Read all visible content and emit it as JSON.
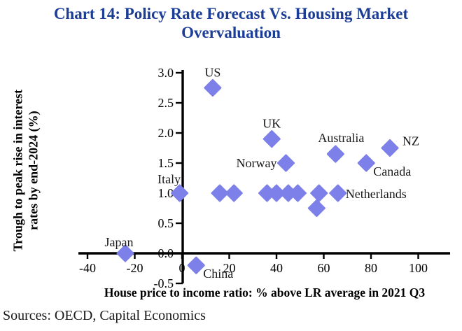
{
  "title": {
    "line1": "Chart 14: Policy Rate Forecast Vs. Housing Market",
    "line2": "Overvaluation"
  },
  "sources": "Sources: OECD, Capital Economics",
  "colors": {
    "title_blue": "#1c3d96",
    "marker": "#7c80e8",
    "axis": "#000000"
  },
  "axis_titles": {
    "y_line1": "Trough to peak rise in interest",
    "y_line2": "rates by end-2024 (%)",
    "x": "House price to income ratio: % above LR average in 2021 Q3"
  },
  "chart_data": {
    "type": "scatter",
    "title": "Chart 14: Policy Rate Forecast Vs. Housing Market Overvaluation",
    "xlabel": "House price to income ratio: % above LR average in 2021 Q3",
    "ylabel": "Trough to peak rise in interest rates by end-2024 (%)",
    "xlim": [
      -40,
      100
    ],
    "ylim": [
      -0.5,
      3.0
    ],
    "xticks": [
      "-40",
      "-20",
      "0",
      "20",
      "40",
      "60",
      "80",
      "100"
    ],
    "yticks": [
      "3.0",
      "2.5",
      "2.0",
      "1.5",
      "1.0",
      "0.5",
      "0.0",
      "-0.5"
    ],
    "grid": false,
    "legend": false,
    "marker": "diamond",
    "points": [
      {
        "label": "US",
        "x": 13,
        "y": 2.75,
        "label_pos": "above"
      },
      {
        "label": "UK",
        "x": 38,
        "y": 1.9,
        "label_pos": "above"
      },
      {
        "label": "Norway",
        "x": 44,
        "y": 1.5,
        "label_pos": "left"
      },
      {
        "label": "Australia",
        "x": 65,
        "y": 1.65,
        "label_pos": "above-right"
      },
      {
        "label": "NZ",
        "x": 88,
        "y": 1.75,
        "label_pos": "right-above"
      },
      {
        "label": "Canada",
        "x": 78,
        "y": 1.5,
        "label_pos": "below-right"
      },
      {
        "label": "Netherlands",
        "x": 66,
        "y": 1.0,
        "label_pos": "right"
      },
      {
        "label": "Italy",
        "x": -1,
        "y": 1.0,
        "label_pos": "above-left"
      },
      {
        "label": "Japan",
        "x": -24,
        "y": 0.0,
        "label_pos": "above-close"
      },
      {
        "label": "China",
        "x": 6,
        "y": -0.2,
        "label_pos": "below-right"
      },
      {
        "label": "",
        "x": 16,
        "y": 1.0
      },
      {
        "label": "",
        "x": 22,
        "y": 1.0
      },
      {
        "label": "",
        "x": 36,
        "y": 1.0
      },
      {
        "label": "",
        "x": 40,
        "y": 1.0
      },
      {
        "label": "",
        "x": 45,
        "y": 1.0
      },
      {
        "label": "",
        "x": 49,
        "y": 1.0
      },
      {
        "label": "",
        "x": 58,
        "y": 1.0
      },
      {
        "label": "",
        "x": 57,
        "y": 0.75
      }
    ]
  }
}
